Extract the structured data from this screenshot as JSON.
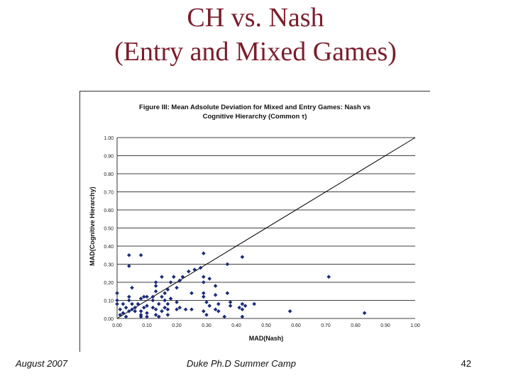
{
  "slide": {
    "title_line1": "CH vs. Nash",
    "title_line2": "(Entry and Mixed Games)",
    "footer_left": "August 2007",
    "footer_center": "Duke Ph.D Summer Camp",
    "page_number": "42"
  },
  "colors": {
    "title": "#7a1e2c",
    "marker": "#1a2a78",
    "grid": "#000000"
  },
  "chart_data": {
    "type": "scatter",
    "title_line1": "Figure III: Mean Adsolute Deviation for Mixed and Entry Games: Nash vs",
    "title_line2": "Cognitive Hierarchy (Common τ)",
    "xlabel": "MAD(Nash)",
    "ylabel": "MAD(Cognitive Hierarchy)",
    "xlim": [
      0,
      1
    ],
    "ylim": [
      0,
      1
    ],
    "xticks": [
      0.0,
      0.1,
      0.2,
      0.3,
      0.4,
      0.5,
      0.6,
      0.7,
      0.8,
      0.9,
      1.0
    ],
    "yticks": [
      0.0,
      0.1,
      0.2,
      0.3,
      0.4,
      0.5,
      0.6,
      0.7,
      0.8,
      0.9,
      1.0
    ],
    "xtick_labels": [
      "0.00",
      "0.10",
      "0.20",
      "0.30",
      "0.40",
      "0.50",
      "0.60",
      "0.70",
      "0.80",
      "0.90",
      "1.00"
    ],
    "ytick_labels": [
      "0.00",
      "0.10",
      "0.20",
      "0.30",
      "0.40",
      "0.50",
      "0.60",
      "0.70",
      "0.80",
      "0.90",
      "1.00"
    ],
    "horizontal_grid": true,
    "reference_line": {
      "from": [
        0,
        0
      ],
      "to": [
        1,
        1
      ]
    },
    "points": [
      [
        0.0,
        0.14
      ],
      [
        0.0,
        0.1
      ],
      [
        0.0,
        0.08
      ],
      [
        0.01,
        0.05
      ],
      [
        0.01,
        0.02
      ],
      [
        0.02,
        0.03
      ],
      [
        0.02,
        0.08
      ],
      [
        0.03,
        0.06
      ],
      [
        0.03,
        0.01
      ],
      [
        0.04,
        0.04
      ],
      [
        0.04,
        0.1
      ],
      [
        0.04,
        0.12
      ],
      [
        0.04,
        0.35
      ],
      [
        0.04,
        0.29
      ],
      [
        0.05,
        0.05
      ],
      [
        0.05,
        0.08
      ],
      [
        0.05,
        0.17
      ],
      [
        0.06,
        0.04
      ],
      [
        0.06,
        0.06
      ],
      [
        0.07,
        0.08
      ],
      [
        0.08,
        0.11
      ],
      [
        0.08,
        0.04
      ],
      [
        0.08,
        0.02
      ],
      [
        0.08,
        0.01
      ],
      [
        0.08,
        0.35
      ],
      [
        0.09,
        0.06
      ],
      [
        0.09,
        0.12
      ],
      [
        0.1,
        0.01
      ],
      [
        0.1,
        0.03
      ],
      [
        0.1,
        0.07
      ],
      [
        0.1,
        0.12
      ],
      [
        0.12,
        0.06
      ],
      [
        0.12,
        0.1
      ],
      [
        0.12,
        0.12
      ],
      [
        0.13,
        0.18
      ],
      [
        0.13,
        0.2
      ],
      [
        0.13,
        0.15
      ],
      [
        0.13,
        0.05
      ],
      [
        0.13,
        0.02
      ],
      [
        0.14,
        0.08
      ],
      [
        0.14,
        0.01
      ],
      [
        0.15,
        0.12
      ],
      [
        0.15,
        0.04
      ],
      [
        0.15,
        0.23
      ],
      [
        0.16,
        0.1
      ],
      [
        0.16,
        0.06
      ],
      [
        0.16,
        0.14
      ],
      [
        0.17,
        0.05
      ],
      [
        0.17,
        0.08
      ],
      [
        0.17,
        0.02
      ],
      [
        0.17,
        0.16
      ],
      [
        0.18,
        0.2
      ],
      [
        0.18,
        0.11
      ],
      [
        0.19,
        0.23
      ],
      [
        0.2,
        0.17
      ],
      [
        0.2,
        0.09
      ],
      [
        0.2,
        0.05
      ],
      [
        0.21,
        0.21
      ],
      [
        0.21,
        0.06
      ],
      [
        0.22,
        0.23
      ],
      [
        0.23,
        0.05
      ],
      [
        0.24,
        0.26
      ],
      [
        0.25,
        0.14
      ],
      [
        0.25,
        0.05
      ],
      [
        0.26,
        0.27
      ],
      [
        0.28,
        0.28
      ],
      [
        0.29,
        0.36
      ],
      [
        0.29,
        0.23
      ],
      [
        0.29,
        0.2
      ],
      [
        0.29,
        0.14
      ],
      [
        0.29,
        0.12
      ],
      [
        0.29,
        0.04
      ],
      [
        0.3,
        0.09
      ],
      [
        0.3,
        0.02
      ],
      [
        0.31,
        0.22
      ],
      [
        0.31,
        0.07
      ],
      [
        0.33,
        0.13
      ],
      [
        0.33,
        0.05
      ],
      [
        0.33,
        0.18
      ],
      [
        0.34,
        0.08
      ],
      [
        0.34,
        0.04
      ],
      [
        0.36,
        0.01
      ],
      [
        0.37,
        0.14
      ],
      [
        0.37,
        0.3
      ],
      [
        0.38,
        0.07
      ],
      [
        0.38,
        0.09
      ],
      [
        0.41,
        0.06
      ],
      [
        0.42,
        0.01
      ],
      [
        0.42,
        0.08
      ],
      [
        0.42,
        0.34
      ],
      [
        0.42,
        0.05
      ],
      [
        0.43,
        0.07
      ],
      [
        0.46,
        0.08
      ],
      [
        0.58,
        0.04
      ],
      [
        0.71,
        0.23
      ],
      [
        0.83,
        0.03
      ]
    ]
  }
}
